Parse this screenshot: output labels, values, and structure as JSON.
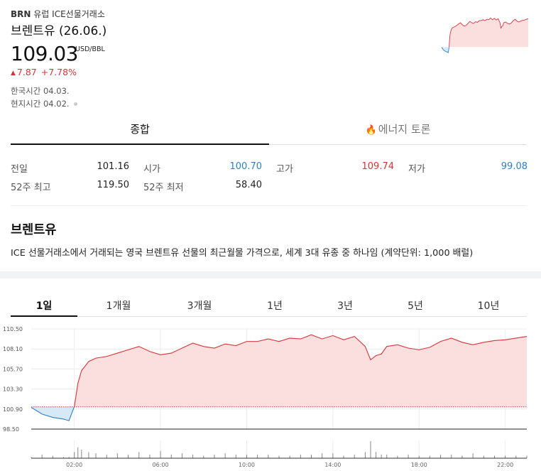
{
  "header": {
    "ticker": "BRN",
    "exchange": "유럽 ICE선물거래소",
    "name": "브렌트유 (26.06.)",
    "price": "109.03",
    "unit": "USD/BBL",
    "change_icon": "triangle-up-icon",
    "change": "7.87",
    "change_pct": "+7.78%",
    "korea_time": "한국시간 04.03.",
    "local_time": "현지시간 04.02."
  },
  "tabs": {
    "summary": "종합",
    "energy": "에너지 토론"
  },
  "quote": {
    "prev_label": "전일",
    "prev_value": "101.16",
    "open_label": "시가",
    "open_value": "100.70",
    "high_label": "고가",
    "high_value": "109.74",
    "low_label": "저가",
    "low_value": "99.08",
    "w52_high_label": "52주 최고",
    "w52_high_value": "119.50",
    "w52_low_label": "52주 최저",
    "w52_low_value": "58.40"
  },
  "description": {
    "title": "브렌트유",
    "text": "ICE 선물거래소에서 거래되는 영국 브렌트유 선물의 최근월물 가격으로, 세계 3대 유종 중 하나임 (계약단위: 1,000 배럴)"
  },
  "periods": [
    "1일",
    "1개월",
    "3개월",
    "1년",
    "3년",
    "5년",
    "10년"
  ],
  "colors": {
    "up": "#d6343a",
    "down": "#2e7fc2",
    "area_up": "#fbdede",
    "area_down": "#d7e9f7"
  },
  "chart_data": {
    "type": "area",
    "baseline": 101.16,
    "ylim": [
      98.5,
      110.5
    ],
    "yticks": [
      "110.50",
      "108.10",
      "105.70",
      "103.30",
      "100.90",
      "98.50"
    ],
    "xticks": [
      "02:00",
      "06:00",
      "10:00",
      "14:00",
      "18:00",
      "22:00"
    ],
    "x": [
      "00:00",
      "00:30",
      "01:00",
      "01:30",
      "01:45",
      "02:00",
      "02:10",
      "02:20",
      "02:40",
      "03:00",
      "03:30",
      "04:00",
      "04:30",
      "05:00",
      "05:30",
      "06:00",
      "06:30",
      "07:00",
      "07:30",
      "08:00",
      "08:30",
      "09:00",
      "09:30",
      "10:00",
      "10:30",
      "11:00",
      "11:30",
      "12:00",
      "12:30",
      "13:00",
      "13:30",
      "14:00",
      "14:30",
      "15:00",
      "15:30",
      "15:45",
      "16:00",
      "16:15",
      "16:30",
      "17:00",
      "17:30",
      "18:00",
      "18:30",
      "19:00",
      "19:30",
      "20:00",
      "20:30",
      "21:00",
      "21:30",
      "22:00",
      "22:30",
      "23:00"
    ],
    "values": [
      101.1,
      100.3,
      99.9,
      99.7,
      99.5,
      101.2,
      104.0,
      105.5,
      106.6,
      107.0,
      107.2,
      107.6,
      108.0,
      108.4,
      107.8,
      107.4,
      107.6,
      108.2,
      108.8,
      108.4,
      108.2,
      108.7,
      108.5,
      109.0,
      109.0,
      109.3,
      109.0,
      109.4,
      109.3,
      109.8,
      109.3,
      109.7,
      109.2,
      109.6,
      108.4,
      106.8,
      107.3,
      107.5,
      108.4,
      108.6,
      108.2,
      108.0,
      108.3,
      109.0,
      109.4,
      108.9,
      108.6,
      108.9,
      109.1,
      109.2,
      109.4,
      109.6
    ],
    "volume": [
      1,
      3,
      2,
      1,
      1,
      5,
      9,
      7,
      5,
      4,
      3,
      4,
      3,
      5,
      3,
      6,
      3,
      4,
      3,
      2,
      3,
      4,
      3,
      3,
      3,
      3,
      2,
      2,
      3,
      3,
      4,
      4,
      2,
      3,
      5,
      14,
      5,
      3,
      3,
      2,
      3,
      2,
      2,
      3,
      3,
      2,
      4,
      2,
      2,
      2,
      2,
      2
    ]
  }
}
